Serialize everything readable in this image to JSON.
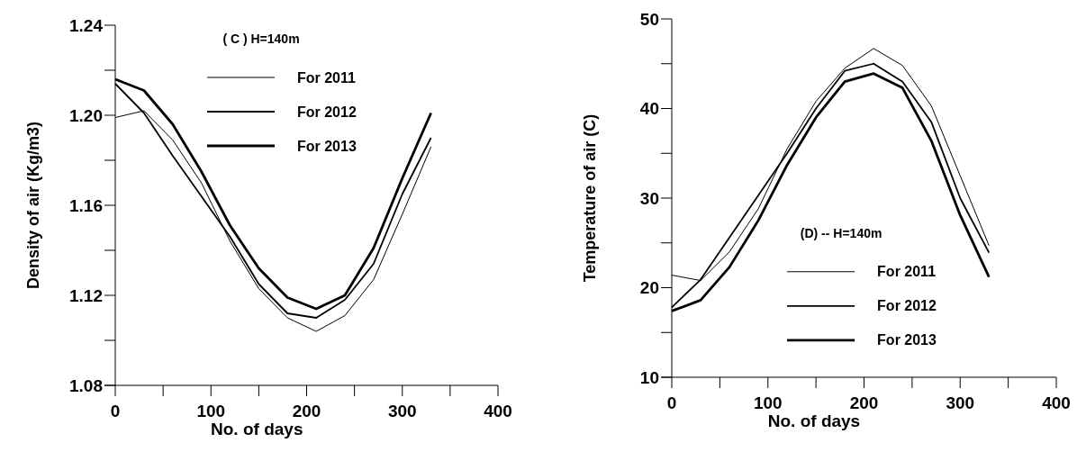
{
  "chart_data": [
    {
      "type": "line",
      "legend_title": "( C ) H=140m",
      "xlabel": "No. of days",
      "ylabel": "Density of air  (Kg/m3)",
      "x": [
        0,
        30,
        60,
        90,
        120,
        150,
        180,
        210,
        240,
        270,
        300,
        330
      ],
      "xlim": [
        0,
        400
      ],
      "xticks": [
        0,
        {
          "value": 50,
          "label": null
        },
        100,
        {
          "value": 150,
          "label": null
        },
        200,
        {
          "value": 250,
          "label": null
        },
        300,
        {
          "value": 350,
          "label": null
        },
        400
      ],
      "ylim": [
        1.08,
        1.24
      ],
      "yticks": [
        {
          "value": 1.08,
          "label": "1.08"
        },
        {
          "value": 1.1,
          "label": null
        },
        {
          "value": 1.12,
          "label": "1.12"
        },
        {
          "value": 1.14,
          "label": null
        },
        {
          "value": 1.16,
          "label": "1.16"
        },
        {
          "value": 1.18,
          "label": null
        },
        {
          "value": 1.2,
          "label": "1.20"
        },
        {
          "value": 1.22,
          "label": null
        },
        {
          "value": 1.24,
          "label": "1.24"
        }
      ],
      "legend": "top",
      "grid": false,
      "line_style": "solid",
      "series": [
        {
          "name": "For 2011",
          "color": "#000000",
          "values": [
            1.199,
            1.202,
            1.189,
            1.17,
            1.144,
            1.123,
            1.11,
            1.104,
            1.111,
            1.127,
            1.156,
            1.186
          ]
        },
        {
          "name": "For 2012",
          "color": "#000000",
          "values": [
            1.214,
            1.201,
            1.182,
            1.164,
            1.146,
            1.125,
            1.112,
            1.11,
            1.118,
            1.134,
            1.165,
            1.19
          ]
        },
        {
          "name": "For 2013",
          "color": "#000000",
          "values": [
            1.216,
            1.211,
            1.196,
            1.175,
            1.151,
            1.132,
            1.119,
            1.114,
            1.12,
            1.141,
            1.172,
            1.201
          ]
        }
      ]
    },
    {
      "type": "line",
      "legend_title": "(D) -- H=140m",
      "xlabel": "No. of days",
      "ylabel": "Temperature of air (C)",
      "x": [
        0,
        30,
        60,
        90,
        120,
        150,
        180,
        210,
        240,
        270,
        300,
        330
      ],
      "xlim": [
        0,
        400
      ],
      "xticks": [
        0,
        {
          "value": 50,
          "label": null
        },
        100,
        {
          "value": 150,
          "label": null
        },
        200,
        {
          "value": 250,
          "label": null
        },
        300,
        {
          "value": 350,
          "label": null
        },
        400
      ],
      "ylim": [
        10,
        50
      ],
      "yticks": [
        10,
        {
          "value": 15,
          "label": null
        },
        20,
        {
          "value": 25,
          "label": null
        },
        30,
        {
          "value": 35,
          "label": null
        },
        40,
        {
          "value": 45,
          "label": null
        },
        50
      ],
      "legend": "bottom",
      "grid": false,
      "line_style": "solid",
      "series": [
        {
          "name": "For 2011",
          "color": "#000000",
          "values": [
            21.4,
            20.8,
            24.0,
            28.8,
            35.5,
            40.8,
            44.5,
            46.7,
            44.8,
            40.3,
            32.5,
            24.7
          ]
        },
        {
          "name": "For 2012",
          "color": "#000000",
          "values": [
            17.8,
            20.9,
            25.6,
            30.3,
            35.0,
            40.0,
            44.2,
            45.0,
            43.0,
            38.5,
            30.0,
            23.9
          ]
        },
        {
          "name": "For 2013",
          "color": "#000000",
          "values": [
            17.4,
            18.6,
            22.3,
            27.5,
            33.7,
            39.0,
            43.0,
            43.9,
            42.3,
            36.4,
            28.1,
            21.2
          ]
        }
      ]
    }
  ]
}
